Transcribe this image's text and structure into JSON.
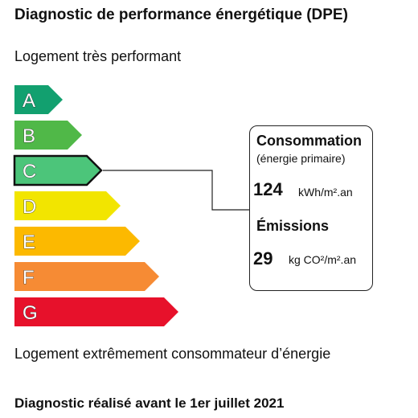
{
  "title": "Diagnostic de performance énergétique (DPE)",
  "top_label": "Logement très performant",
  "bottom_label": "Logement extrêmement consommateur d’énergie",
  "footer_note": "Diagnostic réalisé avant le 1er juillet 2021",
  "chart_data": {
    "type": "bar",
    "categories": [
      "A",
      "B",
      "C",
      "D",
      "E",
      "F",
      "G"
    ],
    "colors": [
      "#12a06f",
      "#50b848",
      "#4cc57a",
      "#f2e500",
      "#fcb900",
      "#f68b34",
      "#e7112b"
    ],
    "selected": "C"
  },
  "consumption": {
    "heading": "Consommation",
    "subheading": "(énergie primaire)",
    "value": "124",
    "unit": "kWh/m².an"
  },
  "emissions": {
    "heading": "Émissions",
    "value": "29",
    "unit": "kg CO²/m².an"
  }
}
